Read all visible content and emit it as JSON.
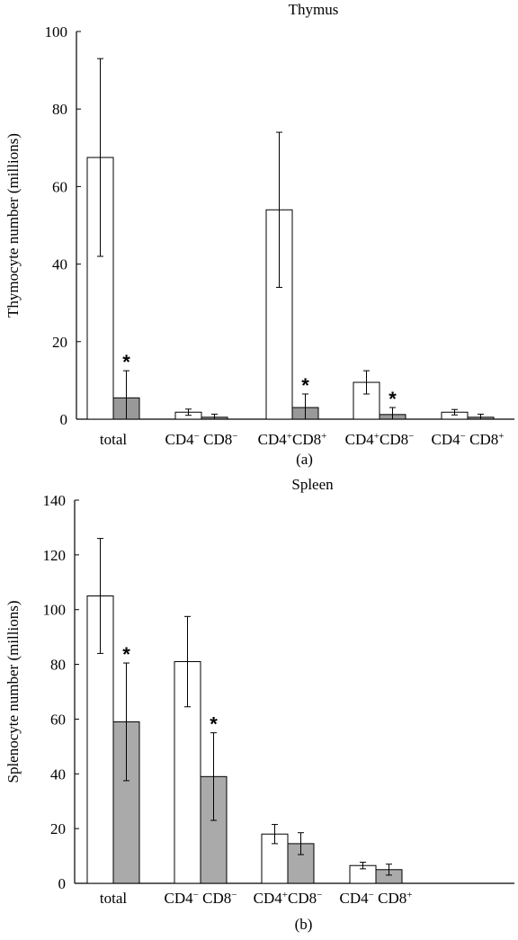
{
  "chart_data": [
    {
      "type": "bar",
      "title": "Thymus",
      "ylabel": "Thymocyte number (millions)",
      "caption": "(a)",
      "ylim": [
        0,
        100
      ],
      "yticks": [
        "0",
        "20",
        "40",
        "60",
        "80",
        "100"
      ],
      "categories": [
        {
          "parts": [
            {
              "t": "total"
            }
          ]
        },
        {
          "parts": [
            {
              "t": "CD4"
            },
            {
              "t": "−",
              "sup": true
            },
            {
              "t": " CD8"
            },
            {
              "t": "−",
              "sup": true
            }
          ]
        },
        {
          "parts": [
            {
              "t": "CD4"
            },
            {
              "t": "+",
              "sup": true
            },
            {
              "t": "CD8"
            },
            {
              "t": "+",
              "sup": true
            }
          ]
        },
        {
          "parts": [
            {
              "t": "CD4"
            },
            {
              "t": "+",
              "sup": true
            },
            {
              "t": "CD8"
            },
            {
              "t": "−",
              "sup": true
            }
          ]
        },
        {
          "parts": [
            {
              "t": "CD4"
            },
            {
              "t": "−",
              "sup": true
            },
            {
              "t": " CD8"
            },
            {
              "t": "+",
              "sup": true
            }
          ]
        }
      ],
      "series": [
        {
          "fill": "#ffffff",
          "values": [
            67.5,
            1.8,
            54,
            9.5,
            1.8
          ],
          "errors": [
            25.5,
            0.8,
            20,
            3,
            0.7
          ]
        },
        {
          "fill": "#999999",
          "values": [
            5.5,
            0.5,
            3,
            1.2,
            0.5
          ],
          "errors": [
            7,
            0.8,
            3.5,
            1.8,
            0.8
          ]
        }
      ],
      "markers": [
        {
          "category": 0,
          "series": 1,
          "text": "*"
        },
        {
          "category": 2,
          "series": 1,
          "text": "*"
        },
        {
          "category": 3,
          "series": 1,
          "text": "*"
        }
      ]
    },
    {
      "type": "bar",
      "title": "Spleen",
      "ylabel": "Splenocyte number (millions)",
      "caption": "(b)",
      "ylim": [
        0,
        140
      ],
      "yticks": [
        "0",
        "20",
        "40",
        "60",
        "80",
        "100",
        "120",
        "140"
      ],
      "categories": [
        {
          "parts": [
            {
              "t": "total"
            }
          ]
        },
        {
          "parts": [
            {
              "t": "CD4"
            },
            {
              "t": "−",
              "sup": true
            },
            {
              "t": " CD8"
            },
            {
              "t": "−",
              "sup": true
            }
          ]
        },
        {
          "parts": [
            {
              "t": "CD4"
            },
            {
              "t": "+",
              "sup": true
            },
            {
              "t": "CD8"
            },
            {
              "t": "−",
              "sup": true
            }
          ]
        },
        {
          "parts": [
            {
              "t": "CD4"
            },
            {
              "t": "−",
              "sup": true
            },
            {
              "t": " CD8"
            },
            {
              "t": "+",
              "sup": true
            }
          ]
        }
      ],
      "series": [
        {
          "fill": "#ffffff",
          "values": [
            105,
            81,
            18,
            6.5
          ],
          "errors": [
            21,
            16.5,
            3.5,
            1.2
          ]
        },
        {
          "fill": "#aaaaaa",
          "values": [
            59,
            39,
            14.5,
            5
          ],
          "errors": [
            21.5,
            16,
            4,
            2
          ]
        }
      ],
      "markers": [
        {
          "category": 0,
          "series": 1,
          "text": "*"
        },
        {
          "category": 1,
          "series": 1,
          "text": "*"
        }
      ]
    }
  ]
}
